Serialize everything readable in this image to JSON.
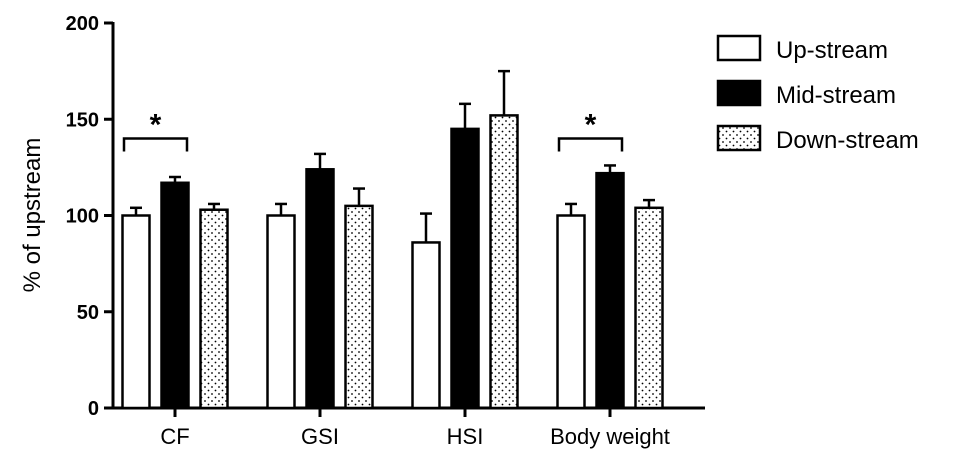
{
  "chart_data": {
    "type": "bar",
    "title": "",
    "xlabel": "",
    "ylabel": "% of upstream",
    "ylim": [
      0,
      200
    ],
    "yticks": [
      0,
      50,
      100,
      150,
      200
    ],
    "categories": [
      "CF",
      "GSI",
      "HSI",
      "Body weight"
    ],
    "series": [
      {
        "name": "Up-stream",
        "fill": "white",
        "values": [
          100,
          100,
          86,
          100
        ],
        "errors": [
          4,
          6,
          15,
          6
        ]
      },
      {
        "name": "Mid-stream",
        "fill": "black",
        "values": [
          117,
          124,
          145,
          122
        ],
        "errors": [
          3,
          8,
          13,
          4
        ]
      },
      {
        "name": "Down-stream",
        "fill": "dotted",
        "values": [
          103,
          105,
          152,
          104
        ],
        "errors": [
          3,
          9,
          23,
          4
        ]
      }
    ],
    "annotations": [
      {
        "text": "*",
        "category": "CF",
        "between": [
          "Up-stream",
          "Mid-stream"
        ],
        "level": 140
      },
      {
        "text": "*",
        "category": "Body weight",
        "between": [
          "Up-stream",
          "Mid-stream"
        ],
        "level": 140
      }
    ],
    "legend": "top-right",
    "grid": false
  }
}
